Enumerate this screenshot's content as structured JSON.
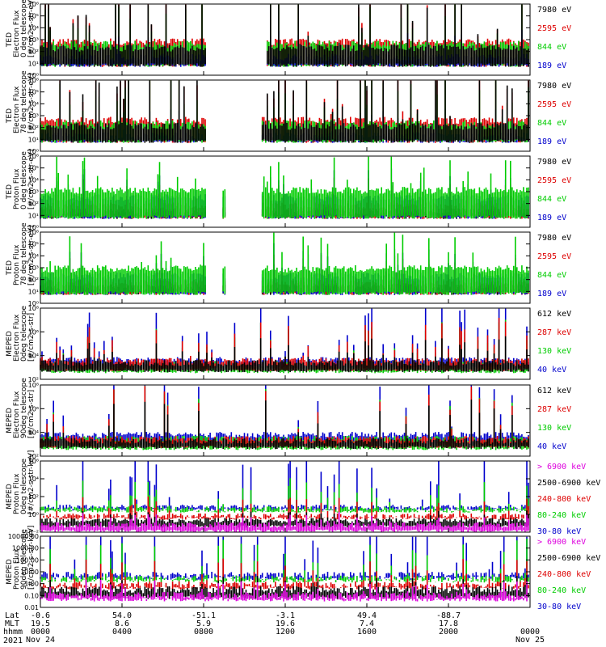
{
  "chart_data": [
    {
      "type": "line",
      "ylabel": [
        "TED",
        "Electron Flux",
        "0 deg telescope",
        "[#/cm2-s-str-eV]"
      ],
      "ytick_labels": [
        "10⁰",
        "10¹",
        "10²",
        "10³",
        "10⁴",
        "10⁵",
        "10⁶"
      ],
      "ylim": [
        0,
        6
      ],
      "log": true,
      "series": [
        {
          "name": "7980 eV",
          "color": "#000000"
        },
        {
          "name": "2595 eV",
          "color": "#dd0000"
        },
        {
          "name": "844 eV",
          "color": "#00cc00"
        },
        {
          "name": "189 eV",
          "color": "#0000cc"
        }
      ],
      "draw_order": [
        1,
        2,
        3,
        0
      ],
      "levels": [
        2.0,
        2.5,
        2.3,
        1.2
      ],
      "spike": [
        3.5,
        2.8,
        2.0,
        1.0
      ],
      "gaps": [
        [
          0.34,
          0.45
        ],
        [
          0.44,
          0.46
        ]
      ],
      "seed": 11
    },
    {
      "type": "line",
      "ylabel": [
        "TED",
        "Electron Flux",
        "78 deg telescope",
        "[#/cm2-s-str-eV]"
      ],
      "ytick_labels": [
        "10⁰",
        "10¹",
        "10²",
        "10³",
        "10⁴",
        "10⁵",
        "10⁶"
      ],
      "ylim": [
        0,
        6
      ],
      "log": true,
      "series": [
        {
          "name": "7980 eV",
          "color": "#000000"
        },
        {
          "name": "2595 eV",
          "color": "#dd0000"
        },
        {
          "name": "844 eV",
          "color": "#00cc00"
        },
        {
          "name": "189 eV",
          "color": "#0000cc"
        }
      ],
      "draw_order": [
        1,
        3,
        2,
        0
      ],
      "levels": [
        1.8,
        2.3,
        2.0,
        1.0
      ],
      "spike": [
        3.3,
        2.5,
        1.8,
        1.0
      ],
      "gaps": [
        [
          0.34,
          0.45
        ]
      ],
      "seed": 23
    },
    {
      "type": "line",
      "ylabel": [
        "TED",
        "Proton Flux",
        "0 deg telescope",
        "[#/cm2-s-str-eV]"
      ],
      "ytick_labels": [
        "10⁰",
        "10¹",
        "10²",
        "10³",
        "10⁴",
        "10⁵",
        "10⁶"
      ],
      "ylim": [
        0,
        6
      ],
      "log": true,
      "series": [
        {
          "name": "7980 eV",
          "color": "#000000"
        },
        {
          "name": "2595 eV",
          "color": "#dd0000"
        },
        {
          "name": "844 eV",
          "color": "#00cc00"
        },
        {
          "name": "189 eV",
          "color": "#0000cc"
        }
      ],
      "draw_order": [
        0,
        1,
        3,
        2
      ],
      "levels": [
        1.0,
        1.5,
        2.8,
        2.2
      ],
      "spike": [
        1.0,
        1.2,
        1.6,
        1.2
      ],
      "gaps": [
        [
          0.34,
          0.37
        ],
        [
          0.38,
          0.45
        ]
      ],
      "seed": 37
    },
    {
      "type": "line",
      "ylabel": [
        "TED",
        "Proton Flux",
        "78 deg telescope",
        "[#/cm2-s-str-eV]"
      ],
      "ytick_labels": [
        "10⁰",
        "10¹",
        "10²",
        "10³",
        "10⁴",
        "10⁵",
        "10⁶"
      ],
      "ylim": [
        0,
        6
      ],
      "log": true,
      "series": [
        {
          "name": "7980 eV",
          "color": "#000000"
        },
        {
          "name": "2595 eV",
          "color": "#dd0000"
        },
        {
          "name": "844 eV",
          "color": "#00cc00"
        },
        {
          "name": "189 eV",
          "color": "#0000cc"
        }
      ],
      "draw_order": [
        0,
        1,
        3,
        2
      ],
      "levels": [
        1.0,
        1.4,
        2.6,
        2.0
      ],
      "spike": [
        1.0,
        1.2,
        1.6,
        1.2
      ],
      "gaps": [
        [
          0.34,
          0.37
        ],
        [
          0.38,
          0.45
        ]
      ],
      "seed": 41
    },
    {
      "type": "line",
      "ylabel": [
        "MEPED",
        "Electron Flux",
        "0deg telescope",
        "[#/cm2-s-str]"
      ],
      "ytick_labels": [
        "10²",
        "10⁴",
        "10⁶",
        "10⁸"
      ],
      "ylim": [
        1,
        8
      ],
      "log": true,
      "series": [
        {
          "name": "612 keV",
          "color": "#000000"
        },
        {
          "name": "287 keV",
          "color": "#dd0000"
        },
        {
          "name": "130 keV",
          "color": "#00cc00"
        },
        {
          "name": "40 keV",
          "color": "#0000cc"
        }
      ],
      "draw_order": [
        3,
        2,
        1,
        0
      ],
      "levels": [
        2.3,
        2.5,
        2.2,
        2.6
      ],
      "spike": [
        1.2,
        2.0,
        2.0,
        2.8
      ],
      "floors": [
        1.7,
        1.8,
        1.6,
        2.0
      ],
      "gaps": [],
      "seed": 53
    },
    {
      "type": "line",
      "ylabel": [
        "MEPED",
        "Electron Flux",
        "90deg telescope",
        "[#/cm2-s-str]"
      ],
      "ytick_labels": [
        "10²",
        "10⁴",
        "10⁶",
        "10⁸"
      ],
      "ylim": [
        1,
        8
      ],
      "log": true,
      "series": [
        {
          "name": "612 keV",
          "color": "#000000"
        },
        {
          "name": "287 keV",
          "color": "#dd0000"
        },
        {
          "name": "130 keV",
          "color": "#00cc00"
        },
        {
          "name": "40 keV",
          "color": "#0000cc"
        }
      ],
      "draw_order": [
        3,
        2,
        1,
        0
      ],
      "levels": [
        2.2,
        2.4,
        2.4,
        2.8
      ],
      "spike": [
        2.0,
        2.6,
        2.6,
        3.2
      ],
      "floors": [
        1.7,
        1.8,
        1.6,
        2.0
      ],
      "gaps": [],
      "seed": 61
    },
    {
      "type": "line",
      "ylabel": [
        "MEPED",
        "Proton Flux",
        "0deg telescope",
        "[#/cm2-s-str-keV]"
      ],
      "ytick_labels": [
        "10⁻²",
        "10⁰",
        "10²",
        "10⁴",
        "10⁶"
      ],
      "ylim": [
        -2,
        6
      ],
      "log": true,
      "series": [
        {
          "name": "> 6900 keV",
          "color": "#dd00dd"
        },
        {
          "name": "2500-6900 keV",
          "color": "#000000"
        },
        {
          "name": "240-800 keV",
          "color": "#dd0000"
        },
        {
          "name": "80-240 keV",
          "color": "#00cc00"
        },
        {
          "name": "30-80 keV",
          "color": "#0000cc"
        }
      ],
      "draw_order": [
        4,
        3,
        2,
        1,
        0
      ],
      "levels": [
        -1.5,
        -1.0,
        -0.5,
        0.3,
        0.5
      ],
      "spike": [
        0.6,
        0.5,
        1.0,
        1.5,
        3.0
      ],
      "floors": [
        -2.0,
        -1.5,
        -0.6,
        0.2,
        0.4
      ],
      "gaps": [],
      "seed": 71
    },
    {
      "type": "line",
      "ylabel": [
        "MEPED",
        "Proton Flux",
        "90deg telescope",
        "[#/cm2-s-str-keV]"
      ],
      "ytick_labels": [
        "0.01",
        "0.10",
        "1.00",
        "10.00",
        "100.00",
        "1000.00",
        "10000.00"
      ],
      "ylim": [
        -2,
        4
      ],
      "log": true,
      "series": [
        {
          "name": "> 6900 keV",
          "color": "#dd00dd"
        },
        {
          "name": "2500-6900 keV",
          "color": "#000000"
        },
        {
          "name": "240-800 keV",
          "color": "#dd0000"
        },
        {
          "name": "80-240 keV",
          "color": "#00cc00"
        },
        {
          "name": "30-80 keV",
          "color": "#0000cc"
        }
      ],
      "draw_order": [
        4,
        3,
        2,
        1,
        0
      ],
      "levels": [
        -1.3,
        -0.8,
        -0.4,
        0.1,
        0.4
      ],
      "spike": [
        0.6,
        0.5,
        1.0,
        1.5,
        2.8
      ],
      "floors": [
        -1.5,
        -1.3,
        -0.5,
        0.1,
        0.3
      ],
      "gaps": [],
      "seed": 83
    }
  ],
  "footer": {
    "row_labels": [
      "Lat",
      "MLT",
      "hhmm",
      "2021"
    ],
    "columns": [
      {
        "lat": "-0.6",
        "mlt": "19.5",
        "hhmm": "0000",
        "date": "Nov 24"
      },
      {
        "lat": "54.0",
        "mlt": "8.6",
        "hhmm": "0400",
        "date": ""
      },
      {
        "lat": "-51.1",
        "mlt": "5.9",
        "hhmm": "0800",
        "date": ""
      },
      {
        "lat": "-3.1",
        "mlt": "19.6",
        "hhmm": "1200",
        "date": ""
      },
      {
        "lat": "49.4",
        "mlt": "7.4",
        "hhmm": "1600",
        "date": ""
      },
      {
        "lat": "-88.7",
        "mlt": "17.8",
        "hhmm": "2000",
        "date": ""
      },
      {
        "lat": "",
        "mlt": "",
        "hhmm": "0000",
        "date": "Nov 25"
      }
    ]
  }
}
